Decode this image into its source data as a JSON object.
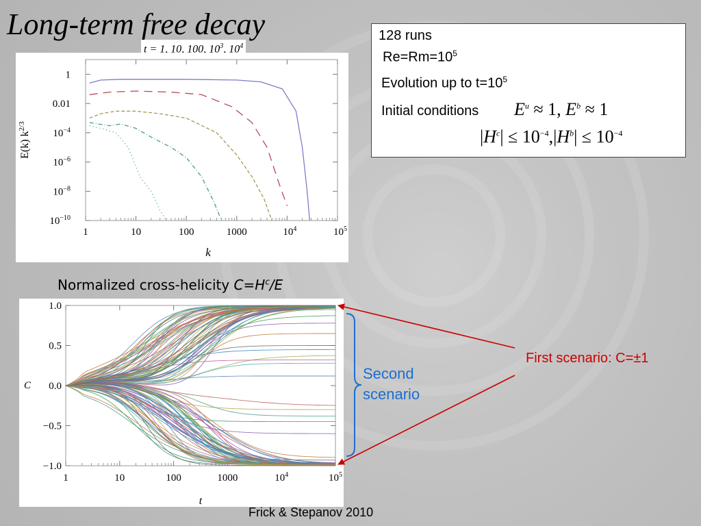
{
  "slide": {
    "title": "Long-term free decay",
    "legend_t_prefix": "t = 1, 10, 100, 10",
    "legend_t_exp1": "3",
    "legend_t_mid": ", 10",
    "legend_t_exp2": "4",
    "subheading_prefix": "Normalized cross-helicity ",
    "subheading_C": "C",
    "subheading_eq": "=",
    "subheading_H": "H",
    "subheading_c": "c",
    "subheading_div": "/",
    "subheading_E": "E",
    "brace_label": "Second scenario",
    "first_scenario_label": "First scenario: C=±1",
    "citation": "Frick & Stepanov 2010",
    "colors": {
      "annotation_red": "#cc0000",
      "brace_blue": "#1a6ed0"
    }
  },
  "info": {
    "runs": "128 runs",
    "re_prefix": "Re=Rm=10",
    "re_exp": "5",
    "evolution_prefix": "Evolution up to t=10",
    "evolution_exp": "5",
    "initial_label": "Initial conditions",
    "eq1_Eu_E": "E",
    "eq1_Eu_sup": "u",
    "eq1_Eu_rest": " ≈ 1, ",
    "eq1_Eb_E": "E",
    "eq1_Eb_sup": "b",
    "eq1_Eb_rest": " ≈ 1",
    "eq2_a": "|",
    "eq2_H1": "H",
    "eq2_c": "c",
    "eq2_b": "| ≤ 10",
    "eq2_e1": "−4",
    "eq2_comma": ",|",
    "eq2_H2": "H",
    "eq2_bsup": "b",
    "eq2_d": "| ≤ 10",
    "eq2_e2": "−4"
  },
  "chart_data": [
    {
      "type": "line",
      "xscale": "log",
      "yscale": "log",
      "xlabel": "k",
      "ylabel": "E(k) k^2/3",
      "xlim": [
        1,
        100000
      ],
      "ylim": [
        1e-10,
        10
      ],
      "x_tick_labels": [
        "1",
        "10",
        "100",
        "1000",
        "10^4",
        "10^5"
      ],
      "y_tick_labels": [
        "1",
        "0.01",
        "10^-4",
        "10^-6",
        "10^-8",
        "10^-10"
      ],
      "series": [
        {
          "color": "#7b7bc8",
          "dash": "",
          "x": [
            1.2,
            2,
            5,
            10,
            100,
            1000,
            3000,
            8000,
            15000,
            20000,
            25000,
            28000
          ],
          "y": [
            0.25,
            0.4,
            0.45,
            0.45,
            0.45,
            0.4,
            0.3,
            0.1,
            0.003,
            1e-05,
            1e-08,
            1e-10
          ]
        },
        {
          "color": "#b84a5a",
          "dash": "12 8",
          "x": [
            1.2,
            3,
            10,
            50,
            200,
            800,
            2000,
            4000,
            7000,
            10000
          ],
          "y": [
            0.04,
            0.06,
            0.07,
            0.06,
            0.04,
            0.006,
            0.0005,
            1e-05,
            3e-08,
            1e-09
          ]
        },
        {
          "color": "#a89858",
          "dash": "5 3",
          "x": [
            1.2,
            2,
            4,
            10,
            30,
            100,
            400,
            1000,
            2000,
            3500,
            5000
          ],
          "y": [
            0.001,
            0.002,
            0.003,
            0.003,
            0.002,
            0.001,
            0.0001,
            3e-06,
            1e-07,
            3e-09,
            1e-10
          ]
        },
        {
          "color": "#4a9a8a",
          "dash": "6 3 1 3",
          "x": [
            1.2,
            3,
            5,
            10,
            20,
            50,
            100,
            200,
            350,
            500
          ],
          "y": [
            0.0005,
            0.0003,
            0.0004,
            0.0002,
            5e-05,
            1e-05,
            2e-06,
            1e-07,
            2e-09,
            1e-10
          ]
        },
        {
          "color": "#3c9a7c",
          "dash": "1 4",
          "x": [
            1.2,
            2,
            4,
            7,
            12,
            20,
            30,
            40
          ],
          "y": [
            0.0003,
            0.0002,
            0.0001,
            1e-05,
            1e-07,
            1e-08,
            5e-10,
            1e-10
          ]
        }
      ]
    },
    {
      "type": "line",
      "xscale": "log",
      "xlabel": "t",
      "ylabel": "C",
      "xlim": [
        1,
        100000
      ],
      "ylim": [
        -1.0,
        1.0
      ],
      "x_tick_labels": [
        "1",
        "10",
        "100",
        "1000",
        "10^4",
        "10^5"
      ],
      "y_tick_labels": [
        "1.0",
        "0.5",
        "0.0",
        "−0.5",
        "−1.0"
      ],
      "series_count": 128,
      "final_values_sample": [
        1.0,
        0.99,
        0.97,
        0.95,
        0.88,
        0.78,
        0.65,
        0.5,
        0.45,
        0.38,
        0.32,
        0.28,
        0.12,
        -0.25,
        -0.3,
        -0.38,
        -0.45,
        -0.6,
        -0.9,
        -0.93,
        -0.97,
        -0.99,
        -1.0
      ]
    }
  ]
}
